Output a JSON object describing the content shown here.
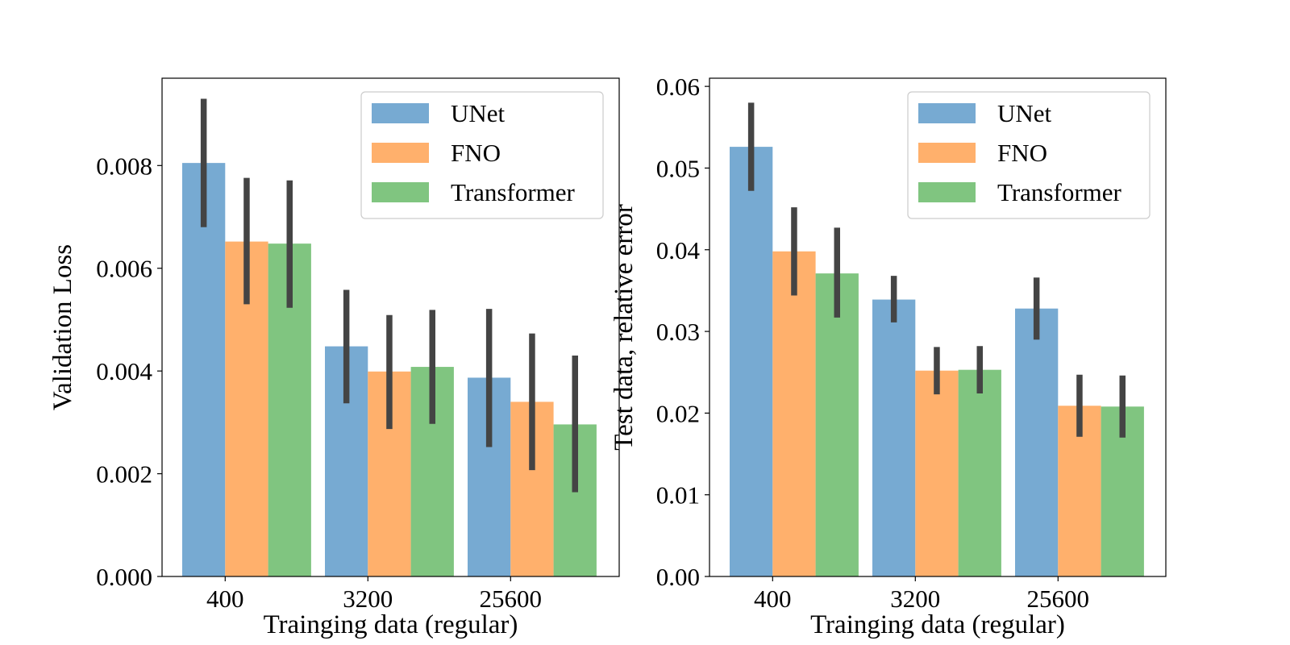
{
  "chart_data": [
    {
      "type": "bar",
      "categories": [
        "400",
        "3200",
        "25600"
      ],
      "xlabel": "Trainging data (regular)",
      "ylabel": "Validation Loss",
      "ylim": [
        0,
        0.0097
      ],
      "yticks": [
        "0.000",
        "0.002",
        "0.004",
        "0.006",
        "0.008"
      ],
      "grid": false,
      "legend_position": "top-right",
      "series": [
        {
          "name": "UNet",
          "color": "#77aad2",
          "values": [
            0.00805,
            0.00448,
            0.00387
          ],
          "error_low": [
            0.0068,
            0.00337,
            0.00252
          ],
          "error_high": [
            0.0093,
            0.00558,
            0.00521
          ]
        },
        {
          "name": "FNO",
          "color": "#ffb06c",
          "values": [
            0.00652,
            0.00399,
            0.0034
          ],
          "error_low": [
            0.0053,
            0.00287,
            0.00207
          ],
          "error_high": [
            0.00776,
            0.00509,
            0.00473
          ]
        },
        {
          "name": "Transformer",
          "color": "#80c580",
          "values": [
            0.00648,
            0.00408,
            0.00296
          ],
          "error_low": [
            0.00523,
            0.00297,
            0.00164
          ],
          "error_high": [
            0.00771,
            0.00519,
            0.0043
          ]
        }
      ]
    },
    {
      "type": "bar",
      "categories": [
        "400",
        "3200",
        "25600"
      ],
      "xlabel": "Trainging data (regular)",
      "ylabel": "Test data, relative error",
      "ylim": [
        0,
        0.061
      ],
      "yticks": [
        "0.00",
        "0.01",
        "0.02",
        "0.03",
        "0.04",
        "0.05",
        "0.06"
      ],
      "grid": false,
      "legend_position": "top-right",
      "series": [
        {
          "name": "UNet",
          "color": "#77aad2",
          "values": [
            0.0526,
            0.0339,
            0.0328
          ],
          "error_low": [
            0.0472,
            0.0311,
            0.029
          ],
          "error_high": [
            0.058,
            0.0368,
            0.0366
          ]
        },
        {
          "name": "FNO",
          "color": "#ffb06c",
          "values": [
            0.0398,
            0.0252,
            0.0209
          ],
          "error_low": [
            0.0344,
            0.0223,
            0.0171
          ],
          "error_high": [
            0.0452,
            0.0281,
            0.0247
          ]
        },
        {
          "name": "Transformer",
          "color": "#80c580",
          "values": [
            0.0371,
            0.0253,
            0.0208
          ],
          "error_low": [
            0.0317,
            0.0224,
            0.017
          ],
          "error_high": [
            0.0427,
            0.0282,
            0.0246
          ]
        }
      ]
    }
  ]
}
